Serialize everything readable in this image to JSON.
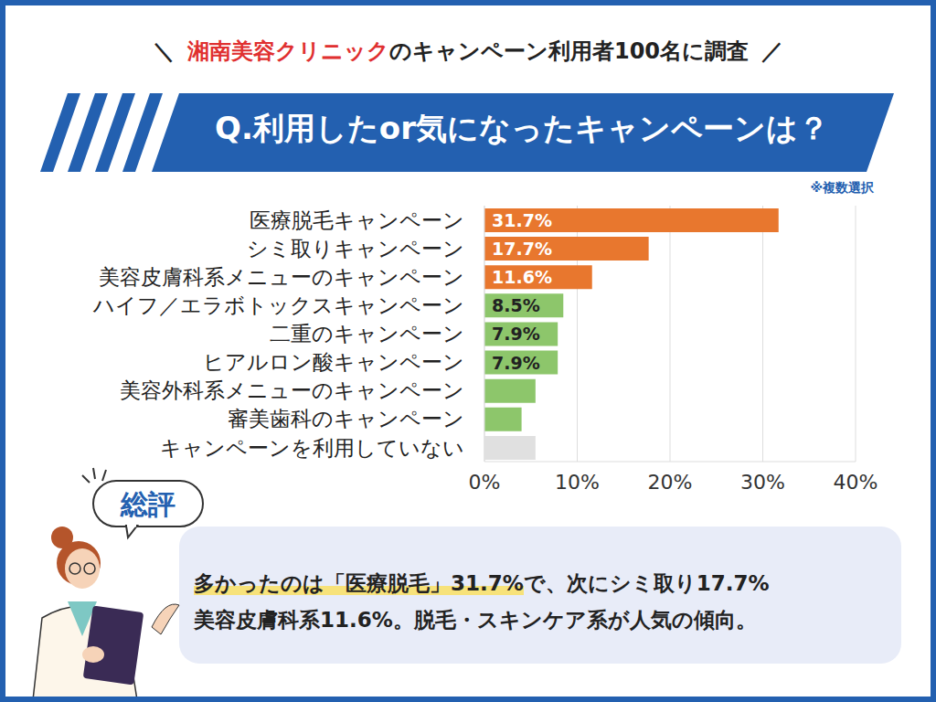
{
  "header": {
    "open": "＼",
    "brand": "湘南美容クリニック",
    "text": "のキャンペーン利用者100名に調査",
    "close": "／"
  },
  "chart_data": {
    "type": "bar",
    "orientation": "horizontal",
    "title": "Q.利用したor気になったキャンペーンは？",
    "subtitle": "※複数選択",
    "categories": [
      "医療脱毛キャンペーン",
      "シミ取りキャンペーン",
      "美容皮膚科系メニューのキャンペーン",
      "ハイフ／エラボトックスキャンペーン",
      "二重のキャンペーン",
      "ヒアルロン酸キャンペーン",
      "美容外科系メニューのキャンペーン",
      "審美歯科のキャンペーン",
      "キャンペーンを利用していない"
    ],
    "values": [
      31.7,
      17.7,
      11.6,
      8.5,
      7.9,
      7.9,
      5.5,
      4,
      5.5
    ],
    "value_labels": [
      "31.7%",
      "17.7%",
      "11.6%",
      "8.5%",
      "7.9%",
      "7.9%",
      null,
      null,
      null
    ],
    "colors": [
      "#e8772e",
      "#e8772e",
      "#e8772e",
      "#8dc66b",
      "#8dc66b",
      "#8dc66b",
      "#8dc66b",
      "#8dc66b",
      "#e0e0e0"
    ],
    "xlim": [
      0,
      40
    ],
    "xticks": [
      {
        "value": 0,
        "label": "0%"
      },
      {
        "value": 10,
        "label": "10%"
      },
      {
        "value": 20,
        "label": "20%"
      },
      {
        "value": 30,
        "label": "30%"
      },
      {
        "value": 40,
        "label": "40%"
      }
    ],
    "grid": true,
    "data_labels": true
  },
  "summary": {
    "heading": "総評",
    "highlight": "多かったのは「医療脱毛」31.7%",
    "line1": "で、次にシミ取り17.7%",
    "line2": "美容皮膚科系11.6%。脱毛・スキンケア系が人気の傾向。"
  }
}
